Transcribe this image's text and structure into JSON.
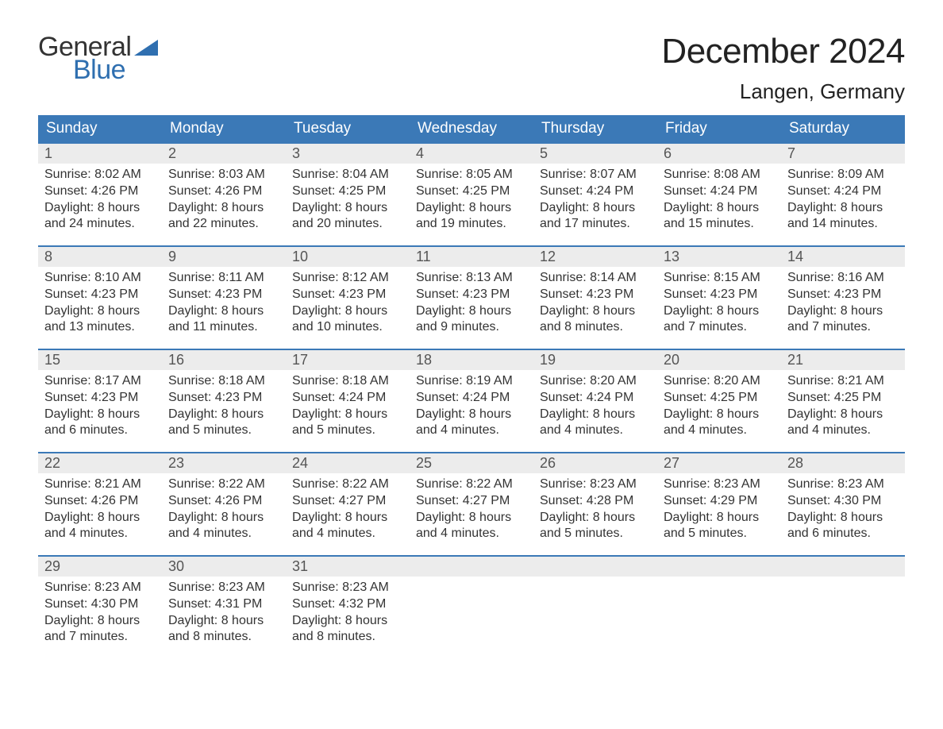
{
  "brand": {
    "word1": "General",
    "word2": "Blue",
    "accent_color": "#2f6fb0"
  },
  "title": "December 2024",
  "location": "Langen, Germany",
  "colors": {
    "header_bg": "#3b79b7",
    "header_text": "#ffffff",
    "row_border": "#3b79b7",
    "daynum_bg": "#ececec",
    "daynum_text": "#555555",
    "body_text": "#333333",
    "background": "#ffffff"
  },
  "day_headers": [
    "Sunday",
    "Monday",
    "Tuesday",
    "Wednesday",
    "Thursday",
    "Friday",
    "Saturday"
  ],
  "weeks": [
    [
      {
        "n": "1",
        "sunrise": "Sunrise: 8:02 AM",
        "sunset": "Sunset: 4:26 PM",
        "d1": "Daylight: 8 hours",
        "d2": "and 24 minutes."
      },
      {
        "n": "2",
        "sunrise": "Sunrise: 8:03 AM",
        "sunset": "Sunset: 4:26 PM",
        "d1": "Daylight: 8 hours",
        "d2": "and 22 minutes."
      },
      {
        "n": "3",
        "sunrise": "Sunrise: 8:04 AM",
        "sunset": "Sunset: 4:25 PM",
        "d1": "Daylight: 8 hours",
        "d2": "and 20 minutes."
      },
      {
        "n": "4",
        "sunrise": "Sunrise: 8:05 AM",
        "sunset": "Sunset: 4:25 PM",
        "d1": "Daylight: 8 hours",
        "d2": "and 19 minutes."
      },
      {
        "n": "5",
        "sunrise": "Sunrise: 8:07 AM",
        "sunset": "Sunset: 4:24 PM",
        "d1": "Daylight: 8 hours",
        "d2": "and 17 minutes."
      },
      {
        "n": "6",
        "sunrise": "Sunrise: 8:08 AM",
        "sunset": "Sunset: 4:24 PM",
        "d1": "Daylight: 8 hours",
        "d2": "and 15 minutes."
      },
      {
        "n": "7",
        "sunrise": "Sunrise: 8:09 AM",
        "sunset": "Sunset: 4:24 PM",
        "d1": "Daylight: 8 hours",
        "d2": "and 14 minutes."
      }
    ],
    [
      {
        "n": "8",
        "sunrise": "Sunrise: 8:10 AM",
        "sunset": "Sunset: 4:23 PM",
        "d1": "Daylight: 8 hours",
        "d2": "and 13 minutes."
      },
      {
        "n": "9",
        "sunrise": "Sunrise: 8:11 AM",
        "sunset": "Sunset: 4:23 PM",
        "d1": "Daylight: 8 hours",
        "d2": "and 11 minutes."
      },
      {
        "n": "10",
        "sunrise": "Sunrise: 8:12 AM",
        "sunset": "Sunset: 4:23 PM",
        "d1": "Daylight: 8 hours",
        "d2": "and 10 minutes."
      },
      {
        "n": "11",
        "sunrise": "Sunrise: 8:13 AM",
        "sunset": "Sunset: 4:23 PM",
        "d1": "Daylight: 8 hours",
        "d2": "and 9 minutes."
      },
      {
        "n": "12",
        "sunrise": "Sunrise: 8:14 AM",
        "sunset": "Sunset: 4:23 PM",
        "d1": "Daylight: 8 hours",
        "d2": "and 8 minutes."
      },
      {
        "n": "13",
        "sunrise": "Sunrise: 8:15 AM",
        "sunset": "Sunset: 4:23 PM",
        "d1": "Daylight: 8 hours",
        "d2": "and 7 minutes."
      },
      {
        "n": "14",
        "sunrise": "Sunrise: 8:16 AM",
        "sunset": "Sunset: 4:23 PM",
        "d1": "Daylight: 8 hours",
        "d2": "and 7 minutes."
      }
    ],
    [
      {
        "n": "15",
        "sunrise": "Sunrise: 8:17 AM",
        "sunset": "Sunset: 4:23 PM",
        "d1": "Daylight: 8 hours",
        "d2": "and 6 minutes."
      },
      {
        "n": "16",
        "sunrise": "Sunrise: 8:18 AM",
        "sunset": "Sunset: 4:23 PM",
        "d1": "Daylight: 8 hours",
        "d2": "and 5 minutes."
      },
      {
        "n": "17",
        "sunrise": "Sunrise: 8:18 AM",
        "sunset": "Sunset: 4:24 PM",
        "d1": "Daylight: 8 hours",
        "d2": "and 5 minutes."
      },
      {
        "n": "18",
        "sunrise": "Sunrise: 8:19 AM",
        "sunset": "Sunset: 4:24 PM",
        "d1": "Daylight: 8 hours",
        "d2": "and 4 minutes."
      },
      {
        "n": "19",
        "sunrise": "Sunrise: 8:20 AM",
        "sunset": "Sunset: 4:24 PM",
        "d1": "Daylight: 8 hours",
        "d2": "and 4 minutes."
      },
      {
        "n": "20",
        "sunrise": "Sunrise: 8:20 AM",
        "sunset": "Sunset: 4:25 PM",
        "d1": "Daylight: 8 hours",
        "d2": "and 4 minutes."
      },
      {
        "n": "21",
        "sunrise": "Sunrise: 8:21 AM",
        "sunset": "Sunset: 4:25 PM",
        "d1": "Daylight: 8 hours",
        "d2": "and 4 minutes."
      }
    ],
    [
      {
        "n": "22",
        "sunrise": "Sunrise: 8:21 AM",
        "sunset": "Sunset: 4:26 PM",
        "d1": "Daylight: 8 hours",
        "d2": "and 4 minutes."
      },
      {
        "n": "23",
        "sunrise": "Sunrise: 8:22 AM",
        "sunset": "Sunset: 4:26 PM",
        "d1": "Daylight: 8 hours",
        "d2": "and 4 minutes."
      },
      {
        "n": "24",
        "sunrise": "Sunrise: 8:22 AM",
        "sunset": "Sunset: 4:27 PM",
        "d1": "Daylight: 8 hours",
        "d2": "and 4 minutes."
      },
      {
        "n": "25",
        "sunrise": "Sunrise: 8:22 AM",
        "sunset": "Sunset: 4:27 PM",
        "d1": "Daylight: 8 hours",
        "d2": "and 4 minutes."
      },
      {
        "n": "26",
        "sunrise": "Sunrise: 8:23 AM",
        "sunset": "Sunset: 4:28 PM",
        "d1": "Daylight: 8 hours",
        "d2": "and 5 minutes."
      },
      {
        "n": "27",
        "sunrise": "Sunrise: 8:23 AM",
        "sunset": "Sunset: 4:29 PM",
        "d1": "Daylight: 8 hours",
        "d2": "and 5 minutes."
      },
      {
        "n": "28",
        "sunrise": "Sunrise: 8:23 AM",
        "sunset": "Sunset: 4:30 PM",
        "d1": "Daylight: 8 hours",
        "d2": "and 6 minutes."
      }
    ],
    [
      {
        "n": "29",
        "sunrise": "Sunrise: 8:23 AM",
        "sunset": "Sunset: 4:30 PM",
        "d1": "Daylight: 8 hours",
        "d2": "and 7 minutes."
      },
      {
        "n": "30",
        "sunrise": "Sunrise: 8:23 AM",
        "sunset": "Sunset: 4:31 PM",
        "d1": "Daylight: 8 hours",
        "d2": "and 8 minutes."
      },
      {
        "n": "31",
        "sunrise": "Sunrise: 8:23 AM",
        "sunset": "Sunset: 4:32 PM",
        "d1": "Daylight: 8 hours",
        "d2": "and 8 minutes."
      },
      null,
      null,
      null,
      null
    ]
  ]
}
